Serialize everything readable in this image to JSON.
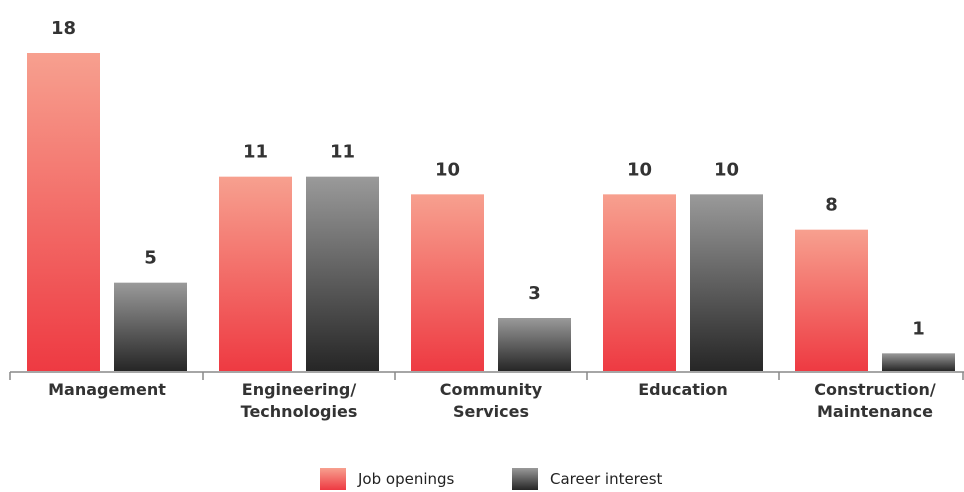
{
  "chart_data": {
    "type": "bar",
    "categories": [
      [
        "Management"
      ],
      [
        "Engineering/",
        "Technologies"
      ],
      [
        "Community",
        "Services"
      ],
      [
        "Education"
      ],
      [
        "Construction/",
        "Maintenance"
      ]
    ],
    "series": [
      {
        "name": "Job openings",
        "values": [
          18,
          11,
          10,
          10,
          8
        ]
      },
      {
        "name": "Career interest",
        "values": [
          5,
          11,
          3,
          10,
          1
        ]
      }
    ],
    "ylim": [
      0,
      18
    ],
    "grid": false,
    "legend_position": "bottom-center",
    "colors": {
      "job_openings_top": "#f7a08f",
      "job_openings_bottom": "#ee3a42",
      "career_interest_top": "#9a9a9a",
      "career_interest_bottom": "#262626",
      "axis": "#888888",
      "text": "#333333"
    }
  },
  "legend": {
    "job_openings": "Job openings",
    "career_interest": "Career interest"
  }
}
